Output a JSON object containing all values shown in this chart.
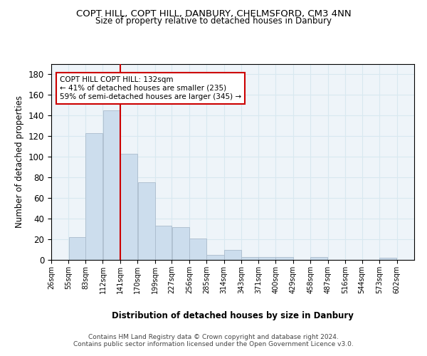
{
  "title": "COPT HILL, COPT HILL, DANBURY, CHELMSFORD, CM3 4NN",
  "subtitle": "Size of property relative to detached houses in Danbury",
  "xlabel": "Distribution of detached houses by size in Danbury",
  "ylabel": "Number of detached properties",
  "bar_color": "#ccdded",
  "bar_edge_color": "#aabbcc",
  "grid_color": "#d8e8f0",
  "bg_color": "#eef4f9",
  "annotation_text": "COPT HILL COPT HILL: 132sqm\n← 41% of detached houses are smaller (235)\n59% of semi-detached houses are larger (345) →",
  "vline_x": 141,
  "vline_color": "#cc0000",
  "annotation_box_color": "#cc0000",
  "categories": [
    "26sqm",
    "55sqm",
    "83sqm",
    "112sqm",
    "141sqm",
    "170sqm",
    "199sqm",
    "227sqm",
    "256sqm",
    "285sqm",
    "314sqm",
    "343sqm",
    "371sqm",
    "400sqm",
    "429sqm",
    "458sqm",
    "487sqm",
    "516sqm",
    "544sqm",
    "573sqm",
    "602sqm"
  ],
  "bin_edges": [
    26,
    55,
    83,
    112,
    141,
    170,
    199,
    227,
    256,
    285,
    314,
    343,
    371,
    400,
    429,
    458,
    487,
    516,
    544,
    573,
    602,
    631
  ],
  "values": [
    0,
    22,
    123,
    145,
    103,
    75,
    33,
    32,
    21,
    5,
    10,
    3,
    3,
    3,
    0,
    3,
    0,
    0,
    0,
    2,
    0
  ],
  "ylim": [
    0,
    190
  ],
  "yticks": [
    0,
    20,
    40,
    60,
    80,
    100,
    120,
    140,
    160,
    180
  ],
  "footer_line1": "Contains HM Land Registry data © Crown copyright and database right 2024.",
  "footer_line2": "Contains public sector information licensed under the Open Government Licence v3.0."
}
